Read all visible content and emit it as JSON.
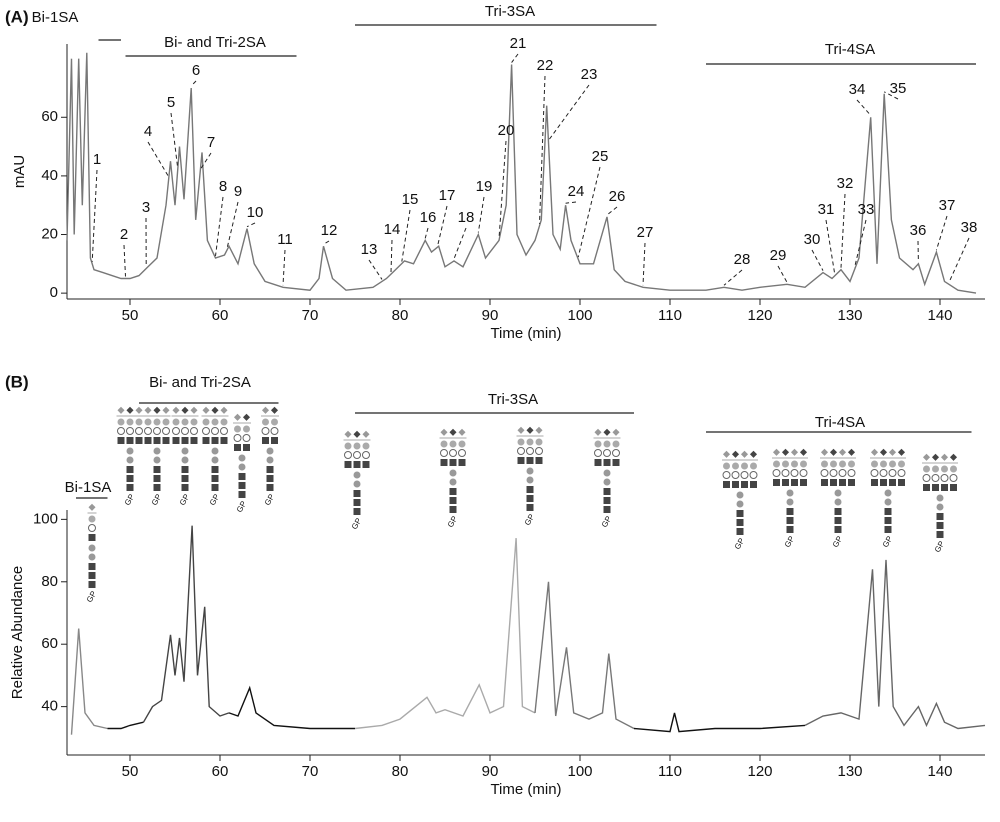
{
  "chart_data": [
    {
      "type": "line",
      "panel": "(A)",
      "ylabel": "mAU",
      "xlabel": "Time (min)",
      "xlim": [
        43,
        145
      ],
      "ylim": [
        -2,
        85
      ],
      "xticks": [
        50,
        60,
        70,
        80,
        90,
        100,
        110,
        120,
        130,
        140
      ],
      "yticks": [
        0,
        20,
        40,
        60
      ],
      "series": [
        {
          "color": "#777777",
          "x": [
            43,
            43.5,
            43.8,
            44.3,
            44.7,
            45.2,
            45.6,
            46,
            47,
            48,
            49,
            50,
            51,
            52,
            53,
            54,
            54.5,
            55,
            55.5,
            56,
            56.8,
            57.3,
            58,
            58.6,
            59.5,
            60.5,
            61,
            62,
            63,
            63.8,
            65,
            67,
            70,
            71,
            71.5,
            72.5,
            74,
            77,
            78.5,
            79.5,
            80.5,
            81.5,
            82.8,
            83.5,
            84.3,
            85,
            86,
            87,
            88.7,
            89.5,
            91,
            91.8,
            92.4,
            93,
            94,
            95,
            95.7,
            96.3,
            97,
            97.8,
            98.4,
            99,
            100,
            101.5,
            103,
            103.8,
            105,
            107,
            110,
            114,
            116,
            118,
            120,
            123,
            125,
            127,
            128,
            129,
            130,
            131,
            132.3,
            133,
            133.8,
            134.6,
            135.5,
            137,
            137.6,
            138.3,
            139.6,
            140.5,
            142,
            144
          ],
          "values": [
            18,
            80,
            20,
            80,
            30,
            82,
            12,
            8,
            7,
            6,
            5,
            5,
            6,
            9,
            12,
            30,
            45,
            30,
            50,
            32,
            70,
            25,
            48,
            18,
            12,
            13,
            16,
            10,
            22,
            10,
            4,
            2,
            1,
            5,
            16,
            5,
            1,
            2,
            5,
            8,
            11,
            10,
            18,
            14,
            16,
            9,
            11,
            9,
            20,
            12,
            18,
            30,
            78,
            20,
            13,
            18,
            25,
            64,
            20,
            15,
            30,
            18,
            10,
            10,
            26,
            8,
            4,
            2,
            1,
            1,
            2,
            1,
            2,
            3,
            2,
            7,
            5,
            8,
            4,
            12,
            60,
            10,
            68,
            25,
            12,
            8,
            10,
            3,
            14,
            4,
            1,
            0
          ]
        }
      ],
      "groups": [
        {
          "label": "Bi-1SA",
          "range": [
            46.5,
            49
          ]
        },
        {
          "label": "Bi- and Tri-2SA",
          "range": [
            49.5,
            68.5
          ]
        },
        {
          "label": "Tri-3SA",
          "range": [
            75,
            108.5
          ]
        },
        {
          "label": "Tri-4SA",
          "range": [
            114,
            144
          ]
        }
      ],
      "peak_labels": [
        {
          "label": "1",
          "x": 45.8
        },
        {
          "label": "2",
          "x": 49.5
        },
        {
          "label": "3",
          "x": 51.8
        },
        {
          "label": "4",
          "x": 54.3
        },
        {
          "label": "5",
          "x": 55.3
        },
        {
          "label": "6",
          "x": 56.8
        },
        {
          "label": "7",
          "x": 57.8
        },
        {
          "label": "8",
          "x": 59.5
        },
        {
          "label": "9",
          "x": 60.8
        },
        {
          "label": "10",
          "x": 63
        },
        {
          "label": "11",
          "x": 67
        },
        {
          "label": "12",
          "x": 71.5
        },
        {
          "label": "13",
          "x": 78
        },
        {
          "label": "14",
          "x": 79
        },
        {
          "label": "15",
          "x": 80.2
        },
        {
          "label": "16",
          "x": 82.8
        },
        {
          "label": "17",
          "x": 84.2
        },
        {
          "label": "18",
          "x": 86
        },
        {
          "label": "19",
          "x": 88.7
        },
        {
          "label": "20",
          "x": 91
        },
        {
          "label": "21",
          "x": 92.4
        },
        {
          "label": "22",
          "x": 95.5
        },
        {
          "label": "23",
          "x": 96.5
        },
        {
          "label": "24",
          "x": 98.4
        },
        {
          "label": "25",
          "x": 99.8
        },
        {
          "label": "26",
          "x": 103
        },
        {
          "label": "27",
          "x": 107
        },
        {
          "label": "28",
          "x": 116
        },
        {
          "label": "29",
          "x": 123
        },
        {
          "label": "30",
          "x": 127
        },
        {
          "label": "31",
          "x": 128.3
        },
        {
          "label": "32",
          "x": 129
        },
        {
          "label": "33",
          "x": 130.5
        },
        {
          "label": "34",
          "x": 132.3
        },
        {
          "label": "35",
          "x": 133.8
        },
        {
          "label": "36",
          "x": 137.6
        },
        {
          "label": "37",
          "x": 139.6
        },
        {
          "label": "38",
          "x": 141
        }
      ]
    },
    {
      "type": "line",
      "panel": "(B)",
      "ylabel": "Relative Abundance",
      "xlabel": "Time (min)",
      "glycan_tag": "GP",
      "xlim": [
        43,
        145
      ],
      "ylim": [
        24.5,
        103
      ],
      "xticks": [
        50,
        60,
        70,
        80,
        90,
        100,
        110,
        120,
        130,
        140
      ],
      "yticks": [
        40,
        60,
        80,
        100
      ],
      "series": [
        {
          "color": "#888888",
          "x": [
            43.5,
            44.3,
            45,
            46,
            47.5
          ],
          "values": [
            31,
            65,
            38,
            34,
            33
          ]
        },
        {
          "color": "#111111",
          "x": [
            47.5,
            49,
            50,
            51.5
          ],
          "values": [
            33,
            33,
            34,
            35
          ]
        },
        {
          "color": "#444444",
          "x": [
            51.5,
            52.5,
            53.5,
            54.5,
            55,
            55.5,
            56,
            56.9,
            57.5,
            58.3,
            58.8,
            60,
            61
          ],
          "values": [
            35,
            40,
            42,
            63,
            50,
            62,
            48,
            98,
            50,
            72,
            40,
            37,
            38
          ]
        },
        {
          "color": "#111111",
          "x": [
            61,
            62,
            63.3,
            64,
            66,
            70,
            75
          ],
          "values": [
            38,
            37,
            46,
            38,
            34,
            33,
            33
          ]
        },
        {
          "color": "#aaaaaa",
          "x": [
            75,
            78,
            80,
            83,
            84,
            85,
            87,
            88.8,
            90,
            91.5,
            92.9,
            93.6,
            95
          ],
          "values": [
            33,
            34,
            36,
            43,
            38,
            39,
            37,
            47,
            38,
            40,
            94,
            40,
            38
          ]
        },
        {
          "color": "#777777",
          "x": [
            95,
            96.5,
            97.3,
            98.5,
            99.3,
            101,
            102.5,
            103.2,
            104,
            106
          ],
          "values": [
            38,
            80,
            37,
            59,
            38,
            36,
            38,
            57,
            36,
            33
          ]
        },
        {
          "color": "#111111",
          "x": [
            106,
            110,
            110.5,
            111,
            115,
            120,
            125
          ],
          "values": [
            33,
            32,
            38,
            32,
            33,
            33,
            34
          ]
        },
        {
          "color": "#666666",
          "x": [
            125,
            127,
            129,
            131,
            132.5,
            133.2,
            134,
            134.8,
            136,
            137.6,
            138.5,
            139.6,
            140.5,
            142,
            145
          ],
          "values": [
            34,
            37,
            38,
            36,
            84,
            40,
            87,
            40,
            34,
            40,
            34,
            41,
            35,
            33,
            34
          ]
        }
      ],
      "groups": [
        {
          "label": "Bi-1SA",
          "range": [
            44,
            47.5
          ]
        },
        {
          "label": "Bi- and Tri-2SA",
          "range": [
            51,
            66.5
          ]
        },
        {
          "label": "Tri-3SA",
          "range": [
            75,
            106
          ]
        },
        {
          "label": "Tri-4SA",
          "range": [
            114,
            143.5
          ]
        }
      ]
    }
  ]
}
